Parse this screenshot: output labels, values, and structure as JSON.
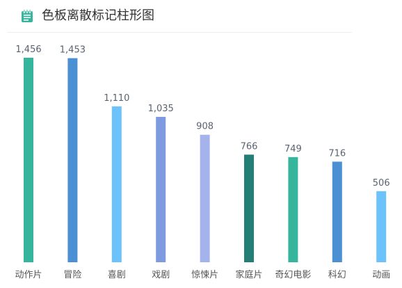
{
  "header": {
    "title": "色板离散标记柱形图",
    "icon": "notepad-icon",
    "icon_color": "#35b59c"
  },
  "chart_data": {
    "type": "bar",
    "title": "",
    "xlabel": "",
    "ylabel": "",
    "categories": [
      "动作片",
      "冒险",
      "喜剧",
      "戏剧",
      "惊悚片",
      "家庭片",
      "奇幻电影",
      "科幻",
      "动画"
    ],
    "values": [
      1456,
      1453,
      1110,
      1035,
      908,
      766,
      749,
      716,
      506
    ],
    "value_labels": [
      "1,456",
      "1,453",
      "1,110",
      "1,035",
      "908",
      "766",
      "749",
      "716",
      "506"
    ],
    "colors": [
      "#35b59c",
      "#4a90d2",
      "#6cc3fb",
      "#7e9be0",
      "#a4b3ec",
      "#237e75",
      "#35b59c",
      "#4a90d2",
      "#6cc3fb"
    ],
    "ylim": [
      0,
      1456
    ],
    "grid": false,
    "legend": "none"
  }
}
